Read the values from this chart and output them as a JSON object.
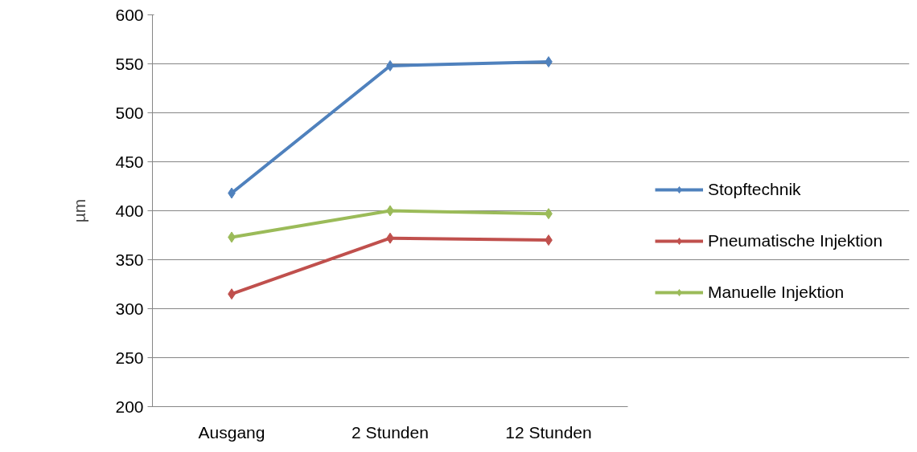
{
  "chart_data": {
    "type": "line",
    "ylabel": "µm",
    "categories": [
      "Ausgang",
      "2 Stunden",
      "12 Stunden"
    ],
    "series": [
      {
        "name": "Stopftechnik",
        "color": "#4f81bd",
        "values": [
          418,
          548,
          552
        ]
      },
      {
        "name": "Pneumatische Injektion",
        "color": "#c0504d",
        "values": [
          315,
          372,
          370
        ]
      },
      {
        "name": "Manuelle Injektion",
        "color": "#9bbb59",
        "values": [
          373,
          400,
          397
        ]
      }
    ],
    "ylim": [
      200,
      600
    ],
    "yticks": [
      200,
      250,
      300,
      350,
      400,
      450,
      500,
      550,
      600
    ],
    "grid": "y",
    "legend": "right",
    "marker": "diamond",
    "line_style": "solid"
  }
}
